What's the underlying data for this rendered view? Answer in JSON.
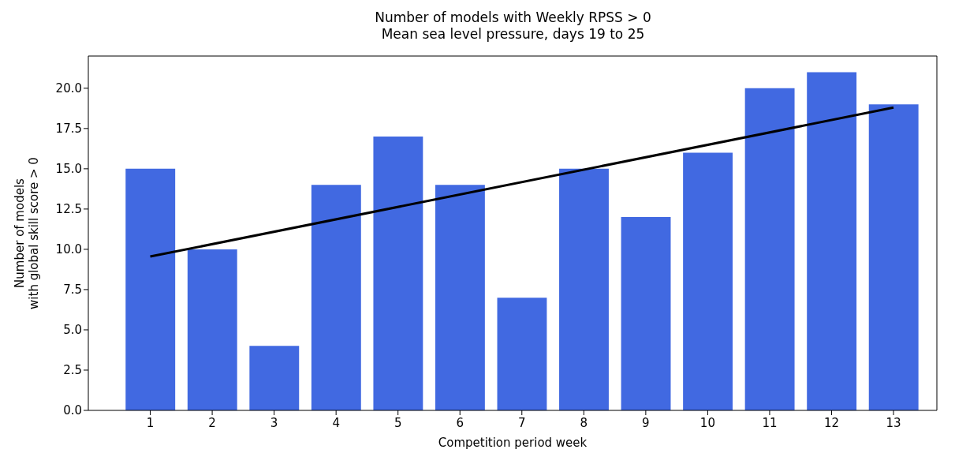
{
  "chart_data": {
    "type": "bar",
    "title": "Number of models with Weekly RPSS > 0",
    "subtitle": "Mean sea level pressure, days 19 to 25",
    "xlabel": "Competition period week",
    "ylabel": "Number of models\nwith global skill score > 0",
    "x": [
      1,
      2,
      3,
      4,
      5,
      6,
      7,
      8,
      9,
      10,
      11,
      12,
      13
    ],
    "series": [
      {
        "color": "#4169e1",
        "values": [
          15,
          10,
          4,
          14,
          17,
          14,
          7,
          15,
          12,
          16,
          20,
          21,
          19
        ]
      },
      {
        "type": "line",
        "color": "#000000",
        "x": [
          1,
          13
        ],
        "values": [
          9.55,
          18.8
        ]
      }
    ],
    "xlim": [
      0,
      13.7
    ],
    "xticks": [
      1,
      2,
      3,
      4,
      5,
      6,
      7,
      8,
      9,
      10,
      11,
      12,
      13
    ],
    "ylim": [
      0,
      22
    ],
    "yticks": [
      {
        "value": 0,
        "label": "0.0"
      },
      {
        "value": 2.5,
        "label": "2.5"
      },
      {
        "value": 5,
        "label": "5.0"
      },
      {
        "value": 7.5,
        "label": "7.5"
      },
      {
        "value": 10,
        "label": "10.0"
      },
      {
        "value": 12.5,
        "label": "12.5"
      },
      {
        "value": 15,
        "label": "15.0"
      },
      {
        "value": 17.5,
        "label": "17.5"
      },
      {
        "value": 20,
        "label": "20.0"
      }
    ],
    "grid": false,
    "legend": false
  }
}
